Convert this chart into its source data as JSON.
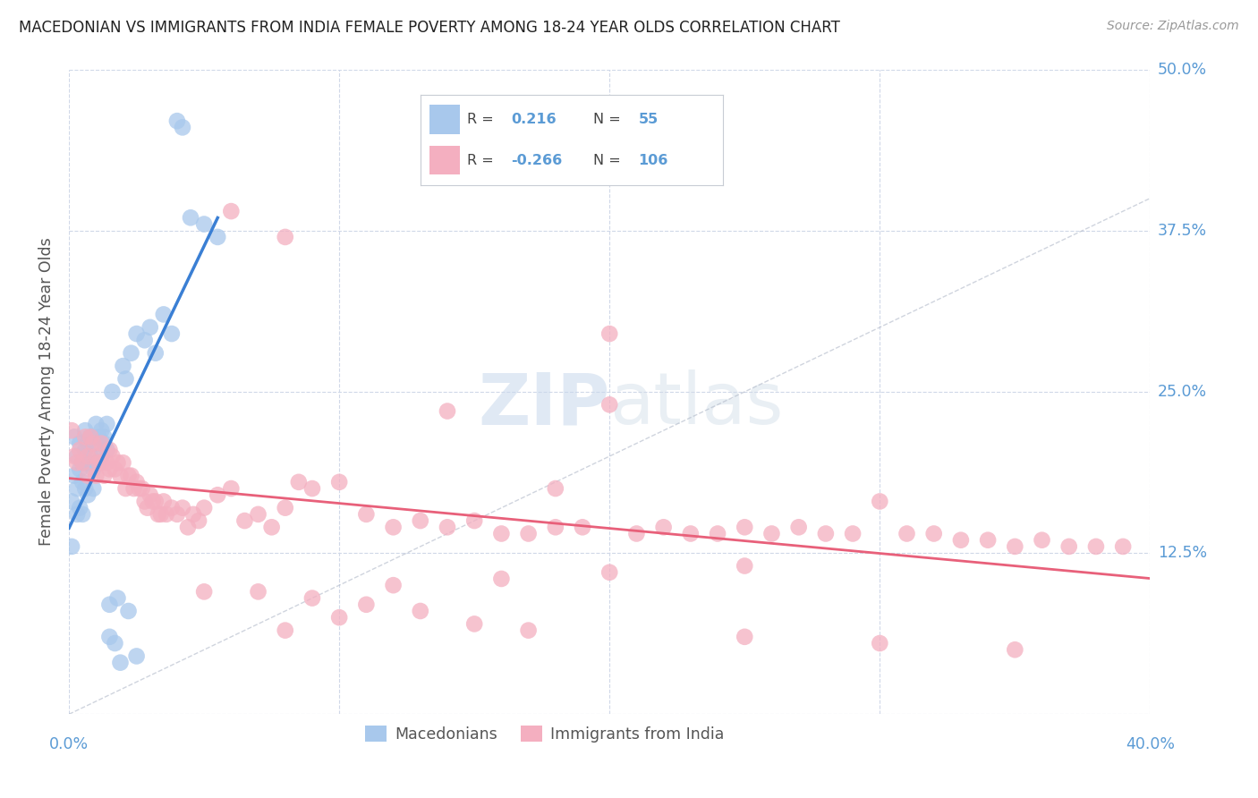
{
  "title": "MACEDONIAN VS IMMIGRANTS FROM INDIA FEMALE POVERTY AMONG 18-24 YEAR OLDS CORRELATION CHART",
  "source": "Source: ZipAtlas.com",
  "ylabel": "Female Poverty Among 18-24 Year Olds",
  "legend_macedonian": "Macedonians",
  "legend_india": "Immigrants from India",
  "R_mac": 0.216,
  "N_mac": 55,
  "R_india": -0.266,
  "N_india": 106,
  "color_mac": "#a8c8ec",
  "color_india": "#f4afc0",
  "color_mac_line": "#3a7fd4",
  "color_india_line": "#e8607a",
  "color_diag": "#b0b8c8",
  "color_label": "#5b9bd5",
  "xlim": [
    0.0,
    0.4
  ],
  "ylim": [
    0.0,
    0.5
  ],
  "grid_color": "#d0d8e8",
  "background_color": "#ffffff",
  "mac_x": [
    0.001,
    0.001,
    0.002,
    0.002,
    0.003,
    0.003,
    0.003,
    0.004,
    0.004,
    0.004,
    0.005,
    0.005,
    0.005,
    0.006,
    0.006,
    0.006,
    0.007,
    0.007,
    0.007,
    0.008,
    0.008,
    0.009,
    0.009,
    0.01,
    0.01,
    0.011,
    0.011,
    0.012,
    0.012,
    0.013,
    0.013,
    0.014,
    0.014,
    0.015,
    0.015,
    0.016,
    0.017,
    0.018,
    0.019,
    0.02,
    0.021,
    0.022,
    0.023,
    0.025,
    0.025,
    0.028,
    0.03,
    0.032,
    0.035,
    0.038,
    0.04,
    0.042,
    0.045,
    0.05,
    0.055
  ],
  "mac_y": [
    0.165,
    0.13,
    0.215,
    0.185,
    0.2,
    0.175,
    0.155,
    0.21,
    0.19,
    0.16,
    0.195,
    0.18,
    0.155,
    0.22,
    0.205,
    0.175,
    0.21,
    0.195,
    0.17,
    0.215,
    0.2,
    0.19,
    0.175,
    0.225,
    0.21,
    0.215,
    0.195,
    0.22,
    0.2,
    0.215,
    0.21,
    0.225,
    0.205,
    0.085,
    0.06,
    0.25,
    0.055,
    0.09,
    0.04,
    0.27,
    0.26,
    0.08,
    0.28,
    0.295,
    0.045,
    0.29,
    0.3,
    0.28,
    0.31,
    0.295,
    0.46,
    0.455,
    0.385,
    0.38,
    0.37
  ],
  "india_x": [
    0.001,
    0.002,
    0.003,
    0.004,
    0.005,
    0.006,
    0.007,
    0.007,
    0.008,
    0.009,
    0.01,
    0.01,
    0.011,
    0.012,
    0.012,
    0.013,
    0.014,
    0.015,
    0.015,
    0.016,
    0.017,
    0.018,
    0.019,
    0.02,
    0.021,
    0.022,
    0.023,
    0.024,
    0.025,
    0.026,
    0.027,
    0.028,
    0.029,
    0.03,
    0.031,
    0.032,
    0.033,
    0.034,
    0.035,
    0.036,
    0.038,
    0.04,
    0.042,
    0.044,
    0.046,
    0.048,
    0.05,
    0.055,
    0.06,
    0.065,
    0.07,
    0.075,
    0.08,
    0.085,
    0.09,
    0.1,
    0.11,
    0.12,
    0.13,
    0.14,
    0.15,
    0.16,
    0.17,
    0.18,
    0.19,
    0.2,
    0.21,
    0.22,
    0.23,
    0.24,
    0.25,
    0.26,
    0.27,
    0.28,
    0.29,
    0.3,
    0.31,
    0.32,
    0.33,
    0.34,
    0.35,
    0.36,
    0.37,
    0.38,
    0.39,
    0.06,
    0.08,
    0.2,
    0.14,
    0.18,
    0.05,
    0.07,
    0.09,
    0.11,
    0.13,
    0.15,
    0.17,
    0.25,
    0.3,
    0.35,
    0.25,
    0.2,
    0.16,
    0.12,
    0.1,
    0.08
  ],
  "india_y": [
    0.22,
    0.2,
    0.195,
    0.205,
    0.195,
    0.215,
    0.2,
    0.185,
    0.215,
    0.21,
    0.2,
    0.185,
    0.195,
    0.21,
    0.195,
    0.185,
    0.195,
    0.205,
    0.19,
    0.2,
    0.19,
    0.195,
    0.185,
    0.195,
    0.175,
    0.185,
    0.185,
    0.175,
    0.18,
    0.175,
    0.175,
    0.165,
    0.16,
    0.17,
    0.165,
    0.165,
    0.155,
    0.155,
    0.165,
    0.155,
    0.16,
    0.155,
    0.16,
    0.145,
    0.155,
    0.15,
    0.16,
    0.17,
    0.175,
    0.15,
    0.155,
    0.145,
    0.16,
    0.18,
    0.175,
    0.18,
    0.155,
    0.145,
    0.15,
    0.145,
    0.15,
    0.14,
    0.14,
    0.145,
    0.145,
    0.24,
    0.14,
    0.145,
    0.14,
    0.14,
    0.145,
    0.14,
    0.145,
    0.14,
    0.14,
    0.165,
    0.14,
    0.14,
    0.135,
    0.135,
    0.13,
    0.135,
    0.13,
    0.13,
    0.13,
    0.39,
    0.37,
    0.295,
    0.235,
    0.175,
    0.095,
    0.095,
    0.09,
    0.085,
    0.08,
    0.07,
    0.065,
    0.06,
    0.055,
    0.05,
    0.115,
    0.11,
    0.105,
    0.1,
    0.075,
    0.065
  ]
}
